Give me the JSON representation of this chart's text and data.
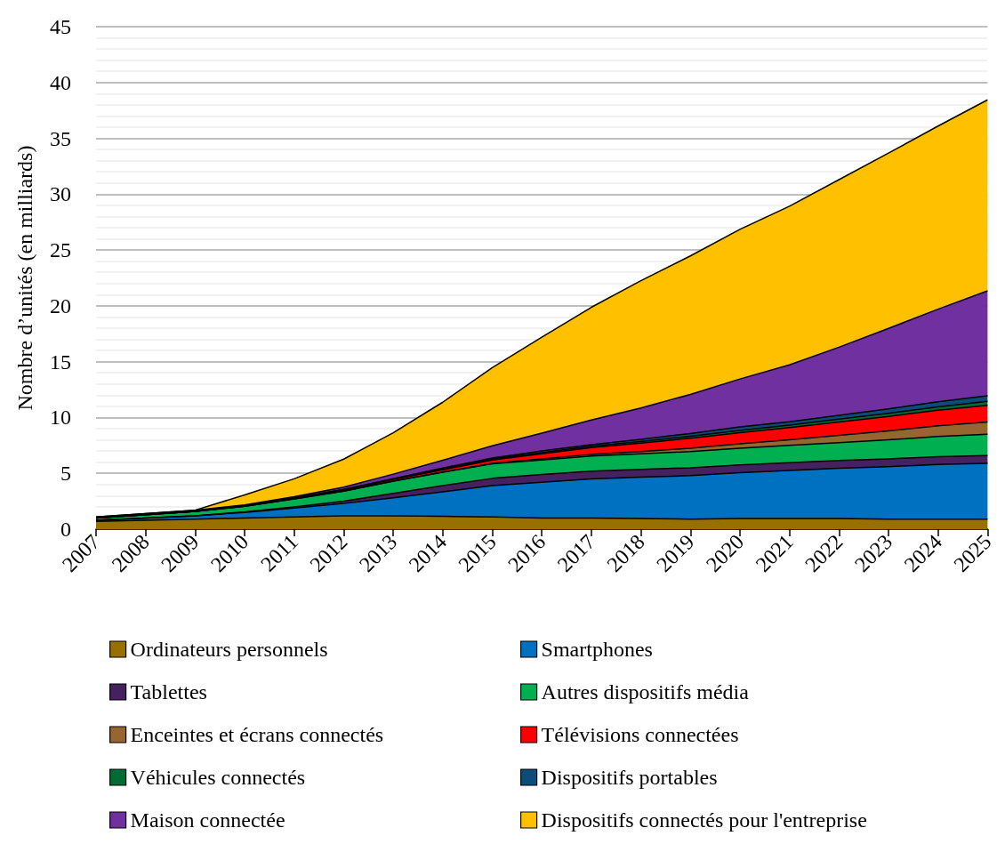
{
  "chart_data": {
    "type": "area",
    "stacked": true,
    "ylabel": "Nombre d’unités (en milliards)",
    "categories": [
      "2007",
      "2008",
      "2009",
      "2010",
      "2011",
      "2012",
      "2013",
      "2014",
      "2015",
      "2016",
      "2017",
      "2018",
      "2019",
      "2020",
      "2021",
      "2022",
      "2023",
      "2024",
      "2025"
    ],
    "ylim": [
      0,
      45
    ],
    "yticks": [
      0,
      5,
      10,
      15,
      20,
      25,
      30,
      35,
      40,
      45
    ],
    "grid": "y",
    "legend": "bottom",
    "series": [
      {
        "name": "Ordinateurs personnels",
        "color": "#987000",
        "values": [
          0.7,
          0.8,
          0.9,
          1.0,
          1.1,
          1.2,
          1.2,
          1.15,
          1.1,
          1.0,
          1.0,
          0.95,
          0.9,
          0.95,
          0.95,
          0.95,
          0.9,
          0.9,
          0.9
        ]
      },
      {
        "name": "Smartphones",
        "color": "#0070c0",
        "values": [
          0.1,
          0.2,
          0.3,
          0.5,
          0.8,
          1.1,
          1.6,
          2.2,
          2.8,
          3.2,
          3.5,
          3.7,
          3.9,
          4.1,
          4.3,
          4.5,
          4.7,
          4.9,
          5.0
        ]
      },
      {
        "name": "Tablettes",
        "color": "#46215f",
        "values": [
          0,
          0,
          0,
          0.05,
          0.1,
          0.2,
          0.4,
          0.55,
          0.65,
          0.7,
          0.7,
          0.7,
          0.7,
          0.7,
          0.7,
          0.7,
          0.7,
          0.7,
          0.7
        ]
      },
      {
        "name": "Autres dispositifs média",
        "color": "#00b050",
        "values": [
          0.2,
          0.3,
          0.4,
          0.5,
          0.7,
          0.9,
          1.1,
          1.2,
          1.3,
          1.3,
          1.35,
          1.4,
          1.45,
          1.5,
          1.55,
          1.6,
          1.7,
          1.8,
          1.9
        ]
      },
      {
        "name": "Enceintes et écrans connectés",
        "color": "#97652f",
        "values": [
          0,
          0,
          0,
          0,
          0,
          0,
          0,
          0.02,
          0.05,
          0.1,
          0.15,
          0.2,
          0.3,
          0.4,
          0.5,
          0.65,
          0.8,
          0.95,
          1.1
        ]
      },
      {
        "name": "Télévisions connectées",
        "color": "#ff0000",
        "values": [
          0,
          0,
          0,
          0.02,
          0.05,
          0.1,
          0.15,
          0.2,
          0.3,
          0.45,
          0.6,
          0.75,
          0.9,
          1.0,
          1.1,
          1.2,
          1.3,
          1.4,
          1.5
        ]
      },
      {
        "name": "Véhicules connectés",
        "color": "#006b34",
        "values": [
          0,
          0,
          0,
          0,
          0.01,
          0.02,
          0.03,
          0.05,
          0.07,
          0.1,
          0.12,
          0.15,
          0.17,
          0.2,
          0.22,
          0.25,
          0.28,
          0.3,
          0.35
        ]
      },
      {
        "name": "Dispositifs portables",
        "color": "#0b4c7a",
        "values": [
          0.05,
          0.05,
          0.05,
          0.05,
          0.05,
          0.05,
          0.05,
          0.1,
          0.1,
          0.15,
          0.15,
          0.2,
          0.25,
          0.3,
          0.3,
          0.35,
          0.4,
          0.45,
          0.5
        ]
      },
      {
        "name": "Maison connectée",
        "color": "#7030a0",
        "values": [
          0.05,
          0.05,
          0.05,
          0.05,
          0.1,
          0.2,
          0.4,
          0.7,
          1.1,
          1.6,
          2.2,
          2.8,
          3.5,
          4.3,
          5.1,
          6.1,
          7.2,
          8.3,
          9.4
        ]
      },
      {
        "name": "Dispositifs connectés pour l'entreprise",
        "color": "#ffc000",
        "values": [
          0,
          0,
          0,
          0.9,
          1.6,
          2.5,
          3.7,
          5.2,
          7.0,
          8.6,
          10.1,
          11.4,
          12.4,
          13.4,
          14.2,
          15.0,
          15.7,
          16.4,
          17.1
        ]
      }
    ]
  }
}
